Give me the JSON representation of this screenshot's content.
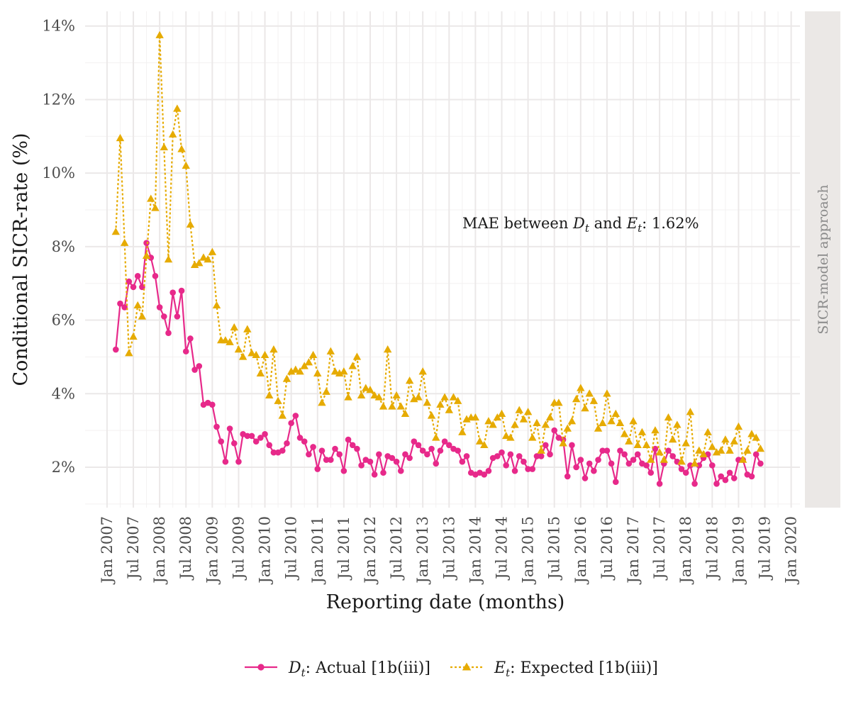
{
  "chart_data": {
    "type": "line",
    "xlabel": "Reporting date (months)",
    "ylabel": "Conditional SICR-rate (%)",
    "facet_label": "SICR-model approach",
    "annotation": {
      "prefix": "MAE between ",
      "a": "D",
      "mid": " and ",
      "b": "E",
      "sub": "t",
      "suffix": ": 1.62%",
      "x": "2016-01",
      "y": 8.5
    },
    "xlim": [
      "2006-08",
      "2020-03"
    ],
    "ylim": [
      0.9,
      14.4
    ],
    "x_ticks": [
      "Jan 2007",
      "Jul 2007",
      "Jan 2008",
      "Jul 2008",
      "Jan 2009",
      "Jul 2009",
      "Jan 2010",
      "Jul 2010",
      "Jan 2011",
      "Jul 2011",
      "Jan 2012",
      "Jul 2012",
      "Jan 2013",
      "Jul 2013",
      "Jan 2014",
      "Jul 2014",
      "Jan 2015",
      "Jul 2015",
      "Jan 2016",
      "Jul 2016",
      "Jan 2017",
      "Jul 2017",
      "Jan 2018",
      "Jul 2018",
      "Jan 2019",
      "Jul 2019",
      "Jan 2020"
    ],
    "y_ticks": [
      2,
      4,
      6,
      8,
      10,
      12,
      14
    ],
    "y_tick_labels": [
      "2%",
      "4%",
      "6%",
      "8%",
      "10%",
      "12%",
      "14%"
    ],
    "grid": true,
    "legend_position": "bottom",
    "start": "2007-03",
    "series": [
      {
        "name": "D",
        "sub": "t",
        "label": ": Actual [1b(iii)]",
        "color": "#e7298a",
        "marker": "circle",
        "dash": "solid",
        "values": [
          5.2,
          6.45,
          6.35,
          7.05,
          6.9,
          7.2,
          6.9,
          8.1,
          7.7,
          7.2,
          6.35,
          6.1,
          5.65,
          6.75,
          6.1,
          6.8,
          5.15,
          5.5,
          4.65,
          4.75,
          3.7,
          3.75,
          3.7,
          3.1,
          2.7,
          2.15,
          3.05,
          2.65,
          2.15,
          2.9,
          2.85,
          2.85,
          2.7,
          2.8,
          2.9,
          2.6,
          2.4,
          2.4,
          2.45,
          2.65,
          3.2,
          3.4,
          2.8,
          2.7,
          2.35,
          2.55,
          1.95,
          2.45,
          2.2,
          2.2,
          2.5,
          2.35,
          1.9,
          2.75,
          2.6,
          2.5,
          2.05,
          2.2,
          2.15,
          1.8,
          2.35,
          1.85,
          2.3,
          2.25,
          2.15,
          1.9,
          2.35,
          2.25,
          2.7,
          2.6,
          2.45,
          2.35,
          2.5,
          2.1,
          2.45,
          2.7,
          2.6,
          2.5,
          2.45,
          2.15,
          2.3,
          1.85,
          1.8,
          1.85,
          1.8,
          1.9,
          2.25,
          2.3,
          2.4,
          2.05,
          2.35,
          1.9,
          2.3,
          2.15,
          1.95,
          1.95,
          2.3,
          2.3,
          2.6,
          2.35,
          3.0,
          2.8,
          2.75,
          1.75,
          2.6,
          2.0,
          2.2,
          1.7,
          2.1,
          1.9,
          2.2,
          2.45,
          2.45,
          2.1,
          1.6,
          2.45,
          2.35,
          2.1,
          2.2,
          2.35,
          2.1,
          2.05,
          1.85,
          2.5,
          1.55,
          2.1,
          2.45,
          2.3,
          2.15,
          1.95,
          1.85,
          2.05,
          1.55,
          2.05,
          2.25,
          2.35,
          2.05,
          1.55,
          1.75,
          1.65,
          1.85,
          1.7,
          2.2,
          2.2,
          1.8,
          1.75,
          2.35,
          2.1
        ]
      },
      {
        "name": "E",
        "sub": "t",
        "label": ": Expected [1b(iii)]",
        "color": "#e6ab02",
        "marker": "triangle",
        "dash": "dotted",
        "values": [
          8.4,
          10.95,
          8.1,
          5.1,
          5.55,
          6.4,
          6.1,
          7.75,
          9.3,
          9.05,
          13.75,
          10.7,
          7.65,
          11.05,
          11.75,
          10.65,
          10.2,
          8.6,
          7.5,
          7.55,
          7.7,
          7.65,
          7.85,
          6.4,
          5.45,
          5.45,
          5.4,
          5.8,
          5.2,
          5.0,
          5.75,
          5.1,
          5.05,
          4.55,
          5.05,
          3.95,
          5.2,
          3.8,
          3.4,
          4.4,
          4.6,
          4.65,
          4.6,
          4.75,
          4.85,
          5.05,
          4.55,
          3.75,
          4.05,
          5.15,
          4.6,
          4.55,
          4.6,
          3.9,
          4.75,
          5.0,
          3.95,
          4.15,
          4.1,
          3.95,
          3.9,
          3.65,
          5.2,
          3.65,
          3.95,
          3.65,
          3.45,
          4.35,
          3.85,
          3.9,
          4.6,
          3.75,
          3.4,
          2.8,
          3.7,
          3.9,
          3.55,
          3.9,
          3.8,
          2.95,
          3.3,
          3.35,
          3.35,
          2.7,
          2.6,
          3.25,
          3.15,
          3.35,
          3.45,
          2.85,
          2.8,
          3.15,
          3.55,
          3.3,
          3.5,
          2.8,
          3.2,
          2.45,
          3.15,
          3.35,
          3.75,
          3.75,
          2.65,
          3.05,
          3.25,
          3.85,
          4.15,
          3.6,
          4.0,
          3.8,
          3.05,
          3.2,
          4.0,
          3.25,
          3.45,
          3.2,
          2.9,
          2.7,
          3.25,
          2.6,
          2.95,
          2.6,
          2.2,
          3.0,
          2.4,
          2.2,
          3.35,
          2.75,
          3.15,
          2.15,
          2.65,
          3.5,
          2.1,
          2.45,
          2.35,
          2.95,
          2.55,
          2.4,
          2.45,
          2.75,
          2.45,
          2.7,
          3.1,
          2.2,
          2.45,
          2.9,
          2.8,
          2.5
        ]
      }
    ]
  }
}
